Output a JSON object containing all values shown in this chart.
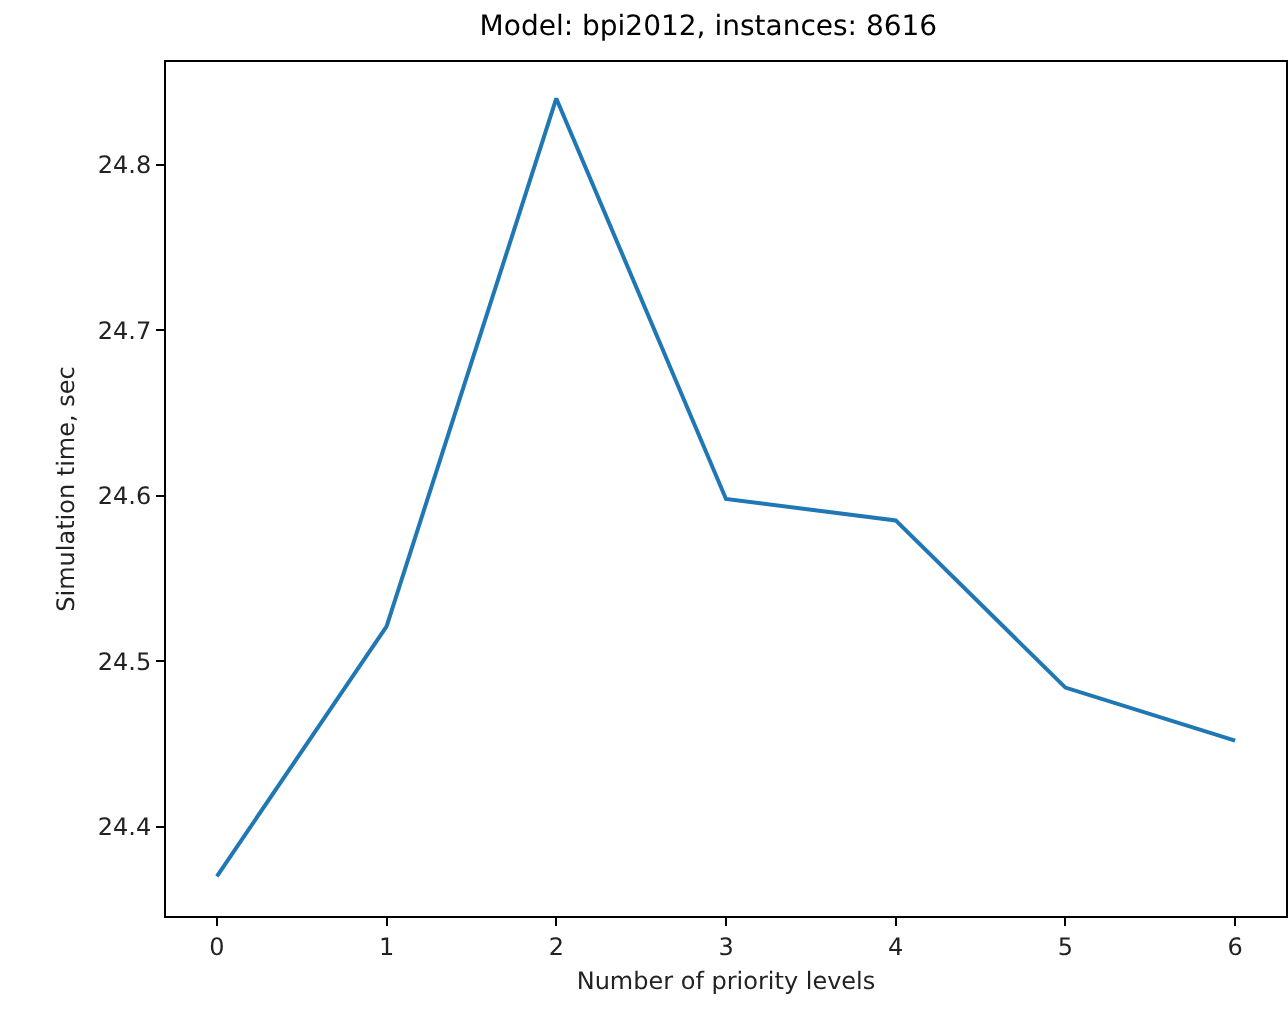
{
  "chart_data": {
    "type": "line",
    "title": "Model: bpi2012, instances: 8616",
    "xlabel": "Number of priority levels",
    "ylabel": "Simulation time, sec",
    "x": [
      0,
      1,
      2,
      3,
      4,
      5,
      6
    ],
    "series": [
      {
        "color": "#1f77b4",
        "values": [
          24.37,
          24.521,
          24.84,
          24.598,
          24.585,
          24.484,
          24.452
        ]
      }
    ],
    "xlim": [
      -0.3,
      6.3
    ],
    "xticks": [
      0,
      1,
      2,
      3,
      4,
      5,
      6
    ],
    "ylim": [
      24.346,
      24.862
    ],
    "yticks": [
      24.4,
      24.5,
      24.6,
      24.7,
      24.8
    ],
    "grid": false,
    "marker": "none",
    "line_style": "solid"
  }
}
